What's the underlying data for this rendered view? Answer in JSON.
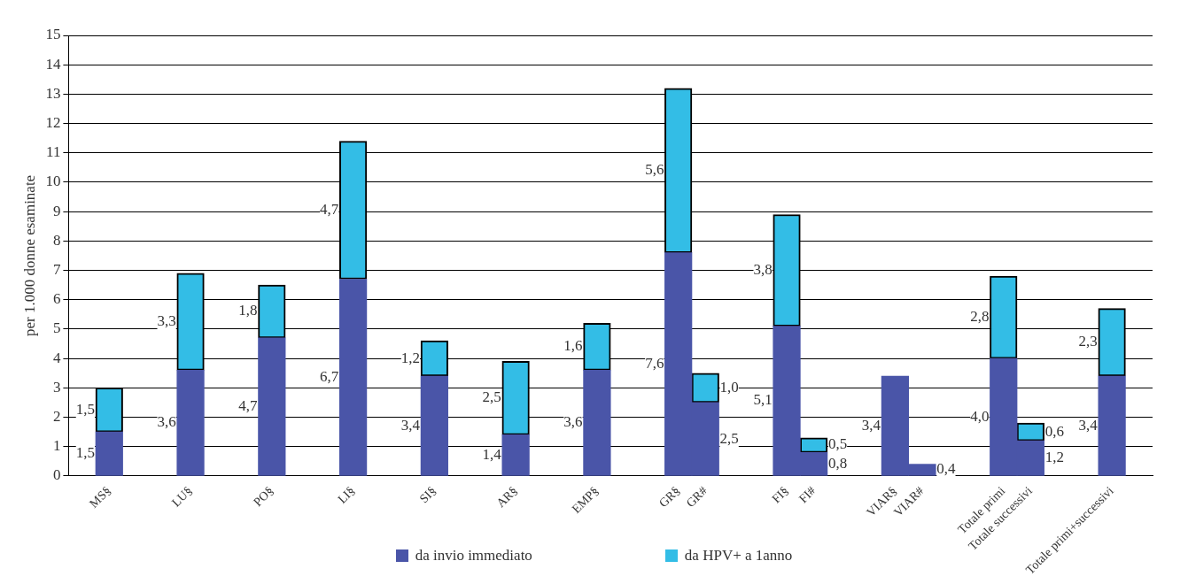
{
  "chart_data": {
    "type": "bar",
    "stacked": true,
    "ylabel": "per 1.000 donne esaminate",
    "categories": [
      null,
      "MS§",
      null,
      null,
      "LU§",
      null,
      null,
      "PO§",
      null,
      null,
      "LI§",
      null,
      null,
      "SI§",
      null,
      null,
      "AR§",
      null,
      null,
      "EMP§",
      null,
      null,
      "GR§",
      "GR#",
      null,
      null,
      "FI§",
      "FI#",
      null,
      null,
      "VIAR§",
      "VIAR#",
      null,
      null,
      "Totale primi",
      "Totale successivi",
      null,
      null,
      "Totale primi+successivi",
      null
    ],
    "series": [
      {
        "name": "da invio immediato",
        "color": "#4a55a8",
        "values": [
          null,
          1.5,
          null,
          null,
          3.6,
          null,
          null,
          4.7,
          null,
          null,
          6.7,
          null,
          null,
          3.4,
          null,
          null,
          1.4,
          null,
          null,
          3.6,
          null,
          null,
          7.6,
          2.5,
          null,
          null,
          5.1,
          0.8,
          null,
          null,
          3.4,
          0.4,
          null,
          null,
          4.0,
          1.2,
          null,
          null,
          3.4,
          null
        ],
        "value_labels": [
          null,
          "1,5",
          null,
          null,
          "3,6",
          null,
          null,
          "4,7",
          null,
          null,
          "6,7",
          null,
          null,
          "3,4",
          null,
          null,
          "1,4",
          null,
          null,
          "3,6",
          null,
          null,
          "7,6",
          "2,5",
          null,
          null,
          "5,1",
          "0,8",
          null,
          null,
          "3,4",
          "0,4",
          null,
          null,
          "4,0",
          "1,2",
          null,
          null,
          "3,4",
          null
        ]
      },
      {
        "name": "da HPV+ a 1anno",
        "color": "#33bde6",
        "values": [
          null,
          1.5,
          null,
          null,
          3.3,
          null,
          null,
          1.8,
          null,
          null,
          4.7,
          null,
          null,
          1.2,
          null,
          null,
          2.5,
          null,
          null,
          1.6,
          null,
          null,
          5.6,
          1.0,
          null,
          null,
          3.8,
          0.5,
          null,
          null,
          null,
          null,
          null,
          null,
          2.8,
          0.6,
          null,
          null,
          2.3,
          null
        ],
        "value_labels": [
          null,
          "1,5",
          null,
          null,
          "3,3",
          null,
          null,
          "1,8",
          null,
          null,
          "4,7",
          null,
          null,
          "1,2",
          null,
          null,
          "2,5",
          null,
          null,
          "1,6",
          null,
          null,
          "5,6",
          "1,0",
          null,
          null,
          "3,8",
          "0,5",
          null,
          null,
          null,
          null,
          null,
          null,
          "2,8",
          "0,6",
          null,
          null,
          "2,3",
          null
        ]
      }
    ],
    "ylim": [
      0,
      15
    ],
    "yticks": [
      0,
      1,
      2,
      3,
      4,
      5,
      6,
      7,
      8,
      9,
      10,
      11,
      12,
      13,
      14,
      15
    ],
    "grid": "y",
    "legend": "bottom"
  }
}
